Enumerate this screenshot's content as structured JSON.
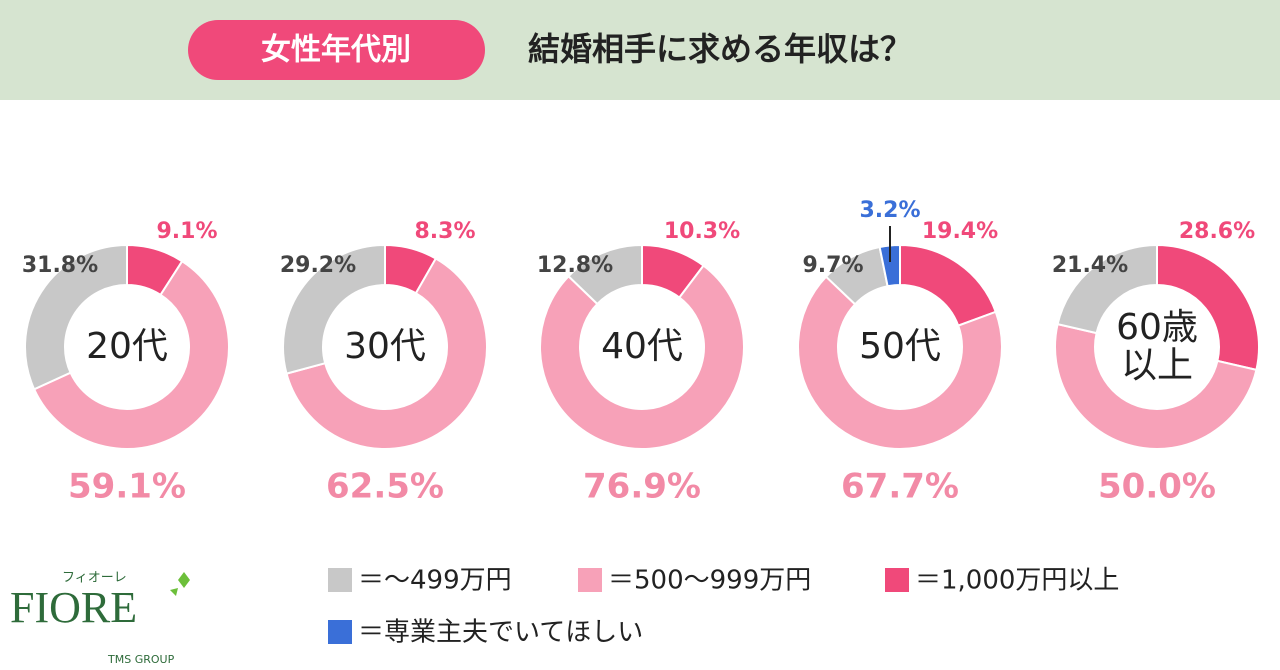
{
  "header": {
    "badge": "女性年代別",
    "title": "結婚相手に求める年収は？"
  },
  "chart_data": [
    {
      "type": "donut",
      "center_label": "20代",
      "values": [
        9.1,
        59.1,
        31.8
      ],
      "value_labels": [
        "9.1%",
        "59.1%",
        "31.8%"
      ],
      "colors": [
        "#f0497a",
        "#f7a1b8",
        "#c8c8c8"
      ]
    },
    {
      "type": "donut",
      "center_label": "30代",
      "values": [
        8.3,
        62.5,
        29.2
      ],
      "value_labels": [
        "8.3%",
        "62.5%",
        "29.2%"
      ],
      "colors": [
        "#f0497a",
        "#f7a1b8",
        "#c8c8c8"
      ]
    },
    {
      "type": "donut",
      "center_label": "40代",
      "values": [
        10.3,
        76.9,
        12.8
      ],
      "value_labels": [
        "10.3%",
        "76.9%",
        "12.8%"
      ],
      "colors": [
        "#f0497a",
        "#f7a1b8",
        "#c8c8c8"
      ]
    },
    {
      "type": "donut",
      "center_label": "50代",
      "values": [
        19.4,
        67.7,
        9.7,
        3.2
      ],
      "value_labels": [
        "19.4%",
        "67.7%",
        "9.7%",
        "3.2%"
      ],
      "colors": [
        "#f0497a",
        "#f7a1b8",
        "#c8c8c8",
        "#3a6fd8"
      ]
    },
    {
      "type": "donut",
      "center_label": "60歳\n以上",
      "values": [
        28.6,
        50.0,
        21.4
      ],
      "value_labels": [
        "28.6%",
        "50.0%",
        "21.4%"
      ],
      "colors": [
        "#f0497a",
        "#f7a1b8",
        "#c8c8c8"
      ]
    }
  ],
  "legend": [
    {
      "label": "＝～499万円",
      "color": "#c8c8c8"
    },
    {
      "label": "＝500～999万円",
      "color": "#f7a1b8"
    },
    {
      "label": "＝1,000万円以上",
      "color": "#f0497a"
    },
    {
      "label": "＝専業主夫でいてほしい",
      "color": "#3a6fd8"
    }
  ],
  "brand": {
    "kana": "フィオーレ",
    "name": "FIORE",
    "group": "TMS GROUP"
  }
}
